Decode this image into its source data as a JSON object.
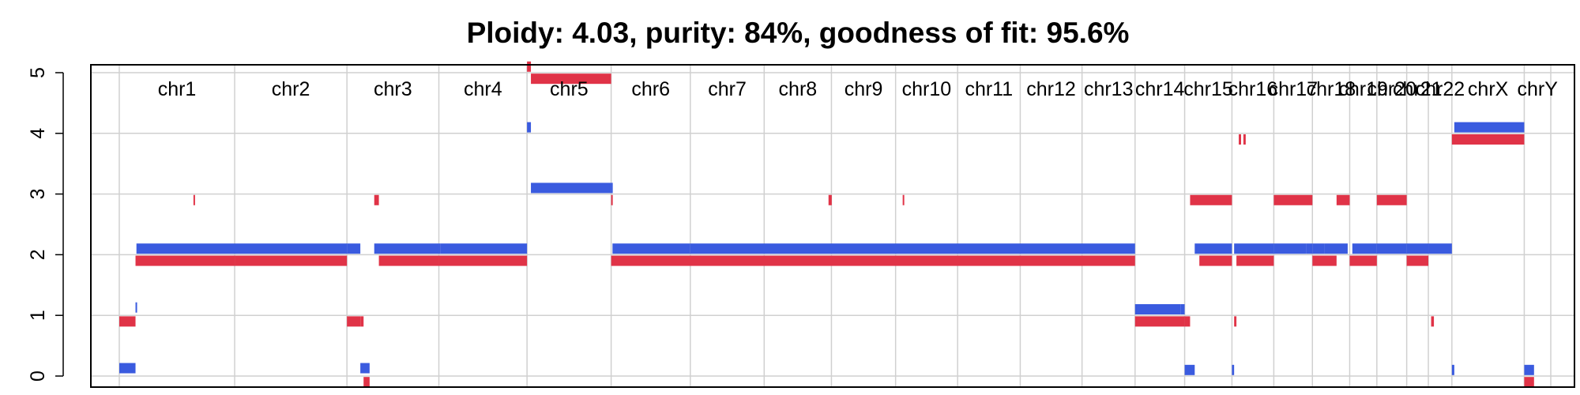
{
  "chart_data": {
    "type": "copy-number-segments",
    "title": "Ploidy: 4.03, purity: 84%, goodness of fit: 95.6%",
    "xlabel": "",
    "ylabel": "",
    "ylim": [
      0,
      5
    ],
    "yticks": [
      0,
      1,
      2,
      3,
      4,
      5
    ],
    "grid": true,
    "legend": "none",
    "colors": {
      "major": "#3a5bdf",
      "minor": "#e03347",
      "grid": "#d0d0d0",
      "axis": "#000000"
    },
    "chromosomes": [
      {
        "name": "chr1",
        "start": 0.0,
        "end": 248.9
      },
      {
        "name": "chr2",
        "start": 248.9,
        "end": 491.1
      },
      {
        "name": "chr3",
        "start": 491.1,
        "end": 689.4
      },
      {
        "name": "chr4",
        "start": 689.4,
        "end": 879.6
      },
      {
        "name": "chr5",
        "start": 879.6,
        "end": 1061.1
      },
      {
        "name": "chr6",
        "start": 1061.1,
        "end": 1231.9
      },
      {
        "name": "chr7",
        "start": 1231.9,
        "end": 1391.2
      },
      {
        "name": "chr8",
        "start": 1391.2,
        "end": 1536.3
      },
      {
        "name": "chr9",
        "start": 1536.3,
        "end": 1674.7
      },
      {
        "name": "chr10",
        "start": 1674.7,
        "end": 1808.5
      },
      {
        "name": "chr11",
        "start": 1808.5,
        "end": 1943.6
      },
      {
        "name": "chr12",
        "start": 1943.6,
        "end": 2076.9
      },
      {
        "name": "chr13",
        "start": 2076.9,
        "end": 2191.3
      },
      {
        "name": "chr14",
        "start": 2191.3,
        "end": 2298.3
      },
      {
        "name": "chr15",
        "start": 2298.3,
        "end": 2400.3
      },
      {
        "name": "chr16",
        "start": 2400.3,
        "end": 2490.6
      },
      {
        "name": "chr17",
        "start": 2490.6,
        "end": 2573.9
      },
      {
        "name": "chr18",
        "start": 2573.9,
        "end": 2654.3
      },
      {
        "name": "chr19",
        "start": 2654.3,
        "end": 2712.9
      },
      {
        "name": "chr20",
        "start": 2712.9,
        "end": 2777.3
      },
      {
        "name": "chr21",
        "start": 2777.3,
        "end": 2824.0
      },
      {
        "name": "chr22",
        "start": 2824.0,
        "end": 2874.8
      },
      {
        "name": "chrX",
        "start": 2874.8,
        "end": 3030.9
      },
      {
        "name": "chrY",
        "start": 3030.9,
        "end": 3088.1
      }
    ],
    "series": [
      {
        "name": "major",
        "color": "#3a5bdf",
        "segments": [
          [
            0,
            35,
            0.13
          ],
          [
            35,
            37,
            1.13
          ],
          [
            37,
            491.1,
            2.1
          ],
          [
            491.1,
            520,
            2.1
          ],
          [
            520,
            540,
            0.13
          ],
          [
            550,
            689.4,
            2.1
          ],
          [
            689.4,
            693,
            2.1
          ],
          [
            693,
            879.6,
            2.1
          ],
          [
            879.6,
            888,
            4.1
          ],
          [
            888,
            1061.1,
            3.1
          ],
          [
            1061.1,
            1064,
            3.1
          ],
          [
            1064,
            1231.9,
            2.1
          ],
          [
            1231.9,
            2191.3,
            2.1
          ],
          [
            2191.3,
            2290,
            1.1
          ],
          [
            2290,
            2298.3,
            1.1
          ],
          [
            2298.3,
            2320,
            0.1
          ],
          [
            2320,
            2400.3,
            2.1
          ],
          [
            2400.3,
            2405,
            0.1
          ],
          [
            2405,
            2490.6,
            2.1
          ],
          [
            2490.6,
            2560,
            2.1
          ],
          [
            2560,
            2573.9,
            2.1
          ],
          [
            2573.9,
            2600,
            2.1
          ],
          [
            2600,
            2650,
            2.1
          ],
          [
            2660,
            2712.9,
            2.1
          ],
          [
            2712.9,
            2777.3,
            2.1
          ],
          [
            2777.3,
            2824.0,
            2.1
          ],
          [
            2824.0,
            2874.8,
            2.1
          ],
          [
            2874.8,
            2880,
            0.1
          ],
          [
            2880,
            3030.9,
            4.1
          ],
          [
            3030.9,
            3052,
            0.1
          ]
        ]
      },
      {
        "name": "minor",
        "color": "#e03347",
        "segments": [
          [
            0,
            35,
            0.9
          ],
          [
            35,
            248.9,
            1.9
          ],
          [
            160,
            162,
            2.9
          ],
          [
            248.9,
            491.1,
            1.9
          ],
          [
            491.1,
            521,
            0.9
          ],
          [
            521,
            527,
            0.9
          ],
          [
            527,
            540,
            -0.1
          ],
          [
            550,
            560,
            2.9
          ],
          [
            560,
            689.4,
            1.9
          ],
          [
            689.4,
            879.6,
            1.9
          ],
          [
            879.6,
            888,
            5.1
          ],
          [
            888,
            1061.1,
            4.9
          ],
          [
            1061.1,
            1064,
            2.9
          ],
          [
            1061.1,
            2191.3,
            1.9
          ],
          [
            1530,
            1537,
            2.9
          ],
          [
            1690,
            1693,
            2.9
          ],
          [
            2191.3,
            2298.3,
            0.9
          ],
          [
            2298.3,
            2310,
            0.9
          ],
          [
            2310,
            2400.3,
            2.9
          ],
          [
            2330,
            2400.3,
            1.9
          ],
          [
            2405,
            2410,
            0.9
          ],
          [
            2410,
            2490.6,
            1.9
          ],
          [
            2415,
            2420,
            3.9
          ],
          [
            2425,
            2430,
            3.9
          ],
          [
            2490.6,
            2573.9,
            2.9
          ],
          [
            2573.9,
            2626,
            1.9
          ],
          [
            2626,
            2654.3,
            2.9
          ],
          [
            2654.3,
            2712.9,
            1.9
          ],
          [
            2712.9,
            2777.3,
            2.9
          ],
          [
            2777.3,
            2824.0,
            1.9
          ],
          [
            2830,
            2836,
            0.9
          ],
          [
            2874.8,
            3030.9,
            3.9
          ],
          [
            3030.9,
            3052,
            -0.1
          ]
        ]
      }
    ]
  }
}
